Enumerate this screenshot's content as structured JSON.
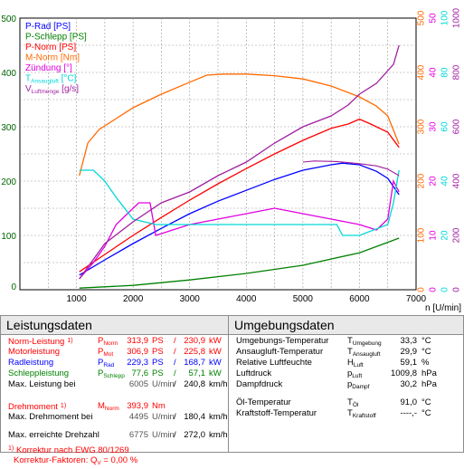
{
  "chart_data": {
    "type": "line",
    "x_axis": {
      "label": "n [U/min]",
      "range": [
        0,
        7000
      ],
      "ticks": [
        "0",
        "1000",
        "2000",
        "3000",
        "4000",
        "5000",
        "6000",
        "7000"
      ]
    },
    "y_left": {
      "range": [
        0,
        500
      ],
      "ticks": [
        "0",
        "100",
        "200",
        "300",
        "400",
        "500"
      ]
    },
    "y_right": [
      {
        "color": "#ff6a00",
        "range": [
          0,
          500
        ],
        "ticks": [
          "0",
          "100",
          "200",
          "300",
          "400",
          "500"
        ]
      },
      {
        "color": "#e000e0",
        "range": [
          0,
          50
        ],
        "ticks": [
          "0",
          "10",
          "20",
          "30",
          "40",
          "50"
        ]
      },
      {
        "color": "#00d8d8",
        "range": [
          0,
          100
        ],
        "ticks": [
          "0",
          "20",
          "40",
          "60",
          "80",
          "100"
        ]
      },
      {
        "color": "#a020a0",
        "range": [
          0,
          1000
        ],
        "ticks": [
          "0",
          "200",
          "400",
          "600",
          "800",
          "1000"
        ]
      }
    ],
    "grid": true,
    "legend": {
      "position": "top-left",
      "items": [
        {
          "text": "P-Rad [PS]",
          "color": "#0000ff"
        },
        {
          "text": "P-Schlepp [PS]",
          "color": "#008000"
        },
        {
          "text": "P-Norm [PS]",
          "color": "#ff0000"
        },
        {
          "text": "M-Norm [Nm]",
          "color": "#ff6a00"
        },
        {
          "text": "Zündung [°]",
          "color": "#e000e0"
        },
        {
          "text": "T",
          "sub": "Ansaugluft",
          "unit": " [°C]",
          "color": "#00d8d8"
        },
        {
          "text": "V",
          "sub": "Luftmenge",
          "unit": " [g/s]",
          "color": "#a020a0"
        }
      ]
    },
    "series": [
      {
        "name": "P-Rad [PS]",
        "color": "#0000ff",
        "axis": "left",
        "x": [
          1050,
          1500,
          2000,
          2500,
          3000,
          3500,
          4000,
          4500,
          5000,
          5500,
          5700,
          6000,
          6300,
          6500,
          6700
        ],
        "y": [
          27,
          55,
          85,
          113,
          140,
          163,
          183,
          203,
          220,
          230,
          233,
          230,
          218,
          205,
          175
        ]
      },
      {
        "name": "P-Schlepp [PS]",
        "color": "#008000",
        "axis": "left",
        "x": [
          1050,
          2000,
          3000,
          4000,
          5000,
          6000,
          6700
        ],
        "y": [
          3,
          8,
          18,
          30,
          45,
          68,
          95
        ]
      },
      {
        "name": "P-Norm [PS]",
        "color": "#ff0000",
        "axis": "left",
        "x": [
          1050,
          1500,
          2000,
          2500,
          3000,
          3500,
          4000,
          4500,
          5000,
          5500,
          5800,
          6000,
          6200,
          6500,
          6700
        ],
        "y": [
          33,
          65,
          100,
          133,
          165,
          195,
          223,
          250,
          275,
          297,
          305,
          314,
          305,
          290,
          262
        ]
      },
      {
        "name": "M-Norm [Nm]",
        "color": "#ff6a00",
        "axis": "right1",
        "x": [
          1050,
          1200,
          1400,
          1700,
          2000,
          2500,
          3000,
          3300,
          3600,
          4000,
          4500,
          5000,
          5500,
          6000,
          6300,
          6500,
          6700
        ],
        "y": [
          210,
          270,
          295,
          315,
          335,
          360,
          382,
          395,
          397,
          397,
          394,
          388,
          375,
          355,
          338,
          320,
          268
        ]
      },
      {
        "name": "Zündung [°]",
        "color": "#e000e0",
        "axis": "right2",
        "x": [
          1050,
          1300,
          1500,
          1700,
          1900,
          2100,
          2300,
          2400,
          2700,
          3000,
          3500,
          4000,
          4500,
          5000,
          5500,
          6000,
          6300,
          6500,
          6600,
          6700
        ],
        "y": [
          2,
          5,
          8,
          12,
          14,
          16,
          16,
          10,
          11,
          12,
          13,
          14,
          15,
          14,
          13,
          12,
          11,
          13,
          20,
          18
        ]
      },
      {
        "name": "T Ansaugluft [°C]",
        "color": "#00d8d8",
        "axis": "right3",
        "x": [
          1050,
          1300,
          1500,
          1700,
          2000,
          2400,
          2600,
          3000,
          4000,
          5000,
          5600,
          5700,
          6000,
          6500,
          6600,
          6700
        ],
        "y": [
          44,
          44,
          40,
          34,
          26,
          24,
          24,
          24,
          24,
          24,
          24,
          20,
          20,
          24,
          32,
          44
        ]
      },
      {
        "name": "V Luftmenge [g/s]",
        "color": "#a020a0",
        "axis": "right4",
        "x": [
          1050,
          1500,
          2000,
          2500,
          3000,
          3500,
          4000,
          4500,
          5000,
          5500,
          5800,
          6000,
          6300,
          6600,
          6700
        ],
        "y": [
          40,
          170,
          250,
          320,
          360,
          420,
          470,
          540,
          600,
          640,
          680,
          720,
          760,
          830,
          900
        ]
      }
    ],
    "annotation": {
      "type": "bracket-curve",
      "color": "#a020a0",
      "x": [
        5000,
        5200,
        5600,
        6000,
        6300,
        6500,
        6700
      ],
      "y": [
        235,
        237,
        236,
        232,
        228,
        222,
        210
      ]
    }
  },
  "leistungsdaten": {
    "title": "Leistungsdaten",
    "rows": [
      {
        "label": "Norm-Leistung",
        "footnote": "1)",
        "color": "#ff0000",
        "sym": "P",
        "sub": "Norm",
        "v1": "313,9",
        "u1": "PS",
        "v2": "230,9",
        "u2": "kW"
      },
      {
        "label": "Motorleistung",
        "color": "#ff0000",
        "sym": "P",
        "sub": "Mot",
        "v1": "306,9",
        "u1": "PS",
        "v2": "225,8",
        "u2": "kW"
      },
      {
        "label": "Radleistung",
        "color": "#0000ff",
        "sym": "P",
        "sub": "Rad",
        "v1": "229,3",
        "u1": "PS",
        "v2": "168,7",
        "u2": "kW"
      },
      {
        "label": "Schleppleistung",
        "color": "#008000",
        "sym": "P",
        "sub": "Schlepp",
        "v1": "77,6",
        "u1": "PS",
        "v2": "57,1",
        "u2": "kW"
      },
      {
        "label": "Max. Leistung bei",
        "color": "#000000",
        "v1": "6005",
        "u1": "U/min",
        "v2": "240,8",
        "u2": "km/h"
      }
    ],
    "torque": {
      "label": "Drehmoment",
      "footnote": "1)",
      "color": "#ff0000",
      "sym": "M",
      "sub": "Norm",
      "v1": "393,9",
      "u1": "Nm"
    },
    "max_torque": {
      "label": "Max. Drehmoment bei",
      "v1": "4495",
      "u1": "U/min",
      "v2": "180,4",
      "u2": "km/h"
    },
    "max_rpm": {
      "label": "Max. erreichte Drehzahl",
      "v1": "6775",
      "u1": "U/min",
      "v2": "272,0",
      "u2": "km/h"
    },
    "footnote": {
      "marker": "1)",
      "text": "Korrektur nach EWG 80/1269",
      "factor_label": "Korrektur-Faktoren: Q",
      "factor_sub": "V",
      "factor_value": " =   0,00 %"
    }
  },
  "umgebungsdaten": {
    "title": "Umgebungsdaten",
    "rows": [
      {
        "label": "Umgebungs-Temperatur",
        "sym": "T",
        "sub": "Umgebung",
        "value": "33,3",
        "unit": "°C"
      },
      {
        "label": "Ansaugluft-Temperatur",
        "sym": "T",
        "sub": "Ansaugluft",
        "value": "29,9",
        "unit": "°C"
      },
      {
        "label": "Relative Luftfeuchte",
        "sym": "H",
        "sub": "Luft",
        "value": "59,1",
        "unit": "%"
      },
      {
        "label": "Luftdruck",
        "sym": "p",
        "sub": "Luft",
        "value": "1009,8",
        "unit": "hPa"
      },
      {
        "label": "Dampfdruck",
        "sym": "p",
        "sub": "Dampf",
        "value": "30,2",
        "unit": "hPa"
      }
    ],
    "rows2": [
      {
        "label": "Öl-Temperatur",
        "sym": "T",
        "sub": "Öl",
        "value": "91,0",
        "unit": "°C"
      },
      {
        "label": "Kraftstoff-Temperatur",
        "sym": "T",
        "sub": "Kraftstoff",
        "value": "----,-",
        "unit": "°C"
      }
    ]
  }
}
